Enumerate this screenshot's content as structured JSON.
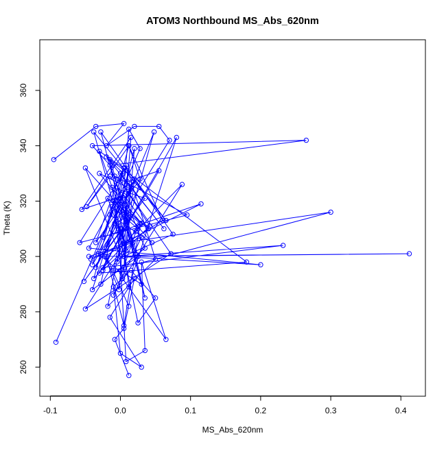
{
  "chart_data": {
    "type": "line",
    "title": "ATOM3 Northbound MS_Abs_620nm",
    "xlabel": "MS_Abs_620nm",
    "ylabel": "Theta (K)",
    "xlim": [
      -0.115,
      0.435
    ],
    "ylim": [
      249.5,
      378.3
    ],
    "x_ticks": [
      -0.1,
      0.0,
      0.1,
      0.2,
      0.3,
      0.4
    ],
    "x_tick_labels": [
      "-0.1",
      "0.0",
      "0.1",
      "0.2",
      "0.3",
      "0.4"
    ],
    "y_ticks": [
      260,
      280,
      300,
      320,
      340,
      360
    ],
    "y_tick_labels": [
      "260",
      "280",
      "300",
      "320",
      "340",
      "360"
    ],
    "grid": false,
    "color": "#0000ff",
    "marker": "open-circle",
    "series": [
      {
        "x": [
          -0.095,
          -0.035,
          0.005,
          -0.02,
          0.02,
          0.055,
          0.07,
          -0.04,
          -0.005,
          0.03,
          -0.03,
          0.01,
          -0.015,
          0.045,
          -0.05,
          0.0,
          0.2,
          -0.045,
          -0.012,
          0.025,
          -0.038,
          0.012,
          0.06,
          -0.022,
          -0.002,
          0.015,
          -0.055,
          0.005,
          0.035,
          -0.028,
          0.008,
          0.05,
          -0.018,
          0.018,
          -0.032,
          0.002,
          0.022,
          0.088,
          -0.01,
          0.03,
          -0.042,
          0.115,
          -0.025,
          0.005,
          -0.005,
          0.04,
          -0.015,
          -0.048,
          0.012,
          0.028,
          -0.035,
          0.0,
          0.062,
          -0.02,
          0.004,
          -0.058,
          0.095,
          -0.008,
          0.02,
          -0.03,
          0.01,
          0.005,
          0.03,
          -0.012,
          0.265,
          -0.04,
          -0.015,
          0.012,
          -0.025,
          0.042,
          -0.002,
          0.072,
          -0.05,
          0.025,
          -0.018,
          0.005,
          0.3,
          -0.01,
          0.015,
          -0.035,
          0.008,
          0.035,
          -0.028,
          0.075,
          0.005,
          0.412,
          -0.045,
          0.018,
          -0.005,
          0.048,
          -0.02,
          0.0,
          0.025,
          -0.04,
          0.01,
          0.055,
          -0.025,
          0.232,
          0.005,
          -0.012,
          0.035,
          -0.052,
          0.002,
          0.012,
          0.08,
          -0.03,
          0.18,
          -0.015,
          0.008,
          -0.038,
          0.065,
          0.02,
          0.005,
          0.02,
          -0.008,
          0.0,
          0.012,
          0.028,
          -0.092
        ],
        "y": [
          335,
          347,
          348,
          340,
          347,
          347,
          342,
          297,
          320,
          312,
          330,
          325,
          315,
          305,
          332,
          300,
          297,
          303,
          318,
          310,
          292,
          340,
          313,
          300,
          288,
          343,
          317,
          322,
          303,
          290,
          333,
          299,
          282,
          327,
          301,
          294,
          309,
          326,
          286,
          307,
          299,
          319,
          307,
          332,
          320,
          310,
          329,
          318,
          340,
          328,
          305,
          330,
          310,
          336,
          330,
          305,
          315,
          329,
          302,
          338,
          331,
          294,
          290,
          333,
          342,
          340,
          333,
          314,
          295,
          311,
          328,
          301,
          281,
          311,
          321,
          305,
          316,
          295,
          325,
          296,
          316,
          285,
          345,
          308,
          300,
          301,
          300,
          305,
          298,
          345,
          303,
          321,
          300,
          288,
          327,
          331,
          296,
          304,
          300,
          325,
          321,
          291,
          310,
          289,
          343,
          294,
          298,
          335,
          302,
          345,
          313,
          328,
          296,
          339,
          312,
          310,
          346,
          339,
          269
        ]
      },
      {
        "x": [
          0.012,
          -0.008,
          0.005,
          0.02,
          -0.015,
          0.03,
          0.0,
          -0.01,
          0.015,
          0.05,
          0.025,
          -0.003,
          0.008,
          0.035,
          0.03,
          0.065,
          0.003,
          -0.01,
          0.028,
          0.005,
          -0.02,
          0.012
        ],
        "y": [
          257,
          270,
          274,
          292,
          278,
          260,
          265,
          289,
          295,
          285,
          276,
          310,
          262,
          266,
          298,
          270,
          292,
          320,
          312,
          275,
          300,
          282
        ]
      }
    ]
  }
}
